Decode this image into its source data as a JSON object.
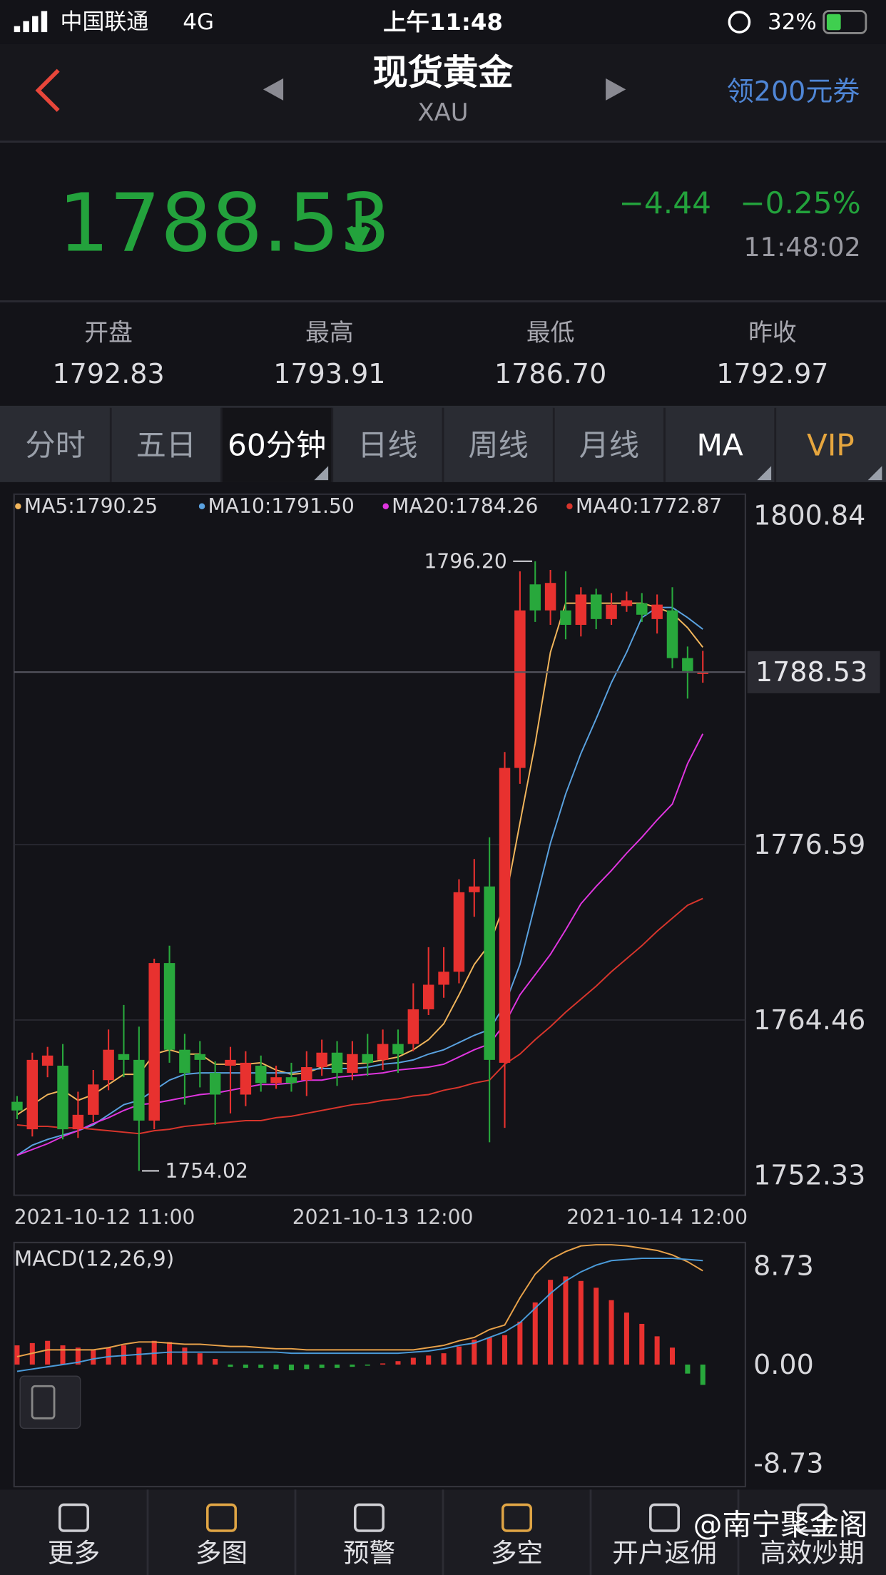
{
  "status_bar": {
    "carrier": "中国联通",
    "network": "4G",
    "time": "上午11:48",
    "battery": "32%"
  },
  "header": {
    "title": "现货黄金",
    "subtitle": "XAU",
    "coupon": "领200元券"
  },
  "quote": {
    "price": "1788.53",
    "change": "−4.44",
    "change_pct": "−0.25%",
    "time": "11:48:02"
  },
  "stats": [
    {
      "label": "开盘",
      "value": "1792.83"
    },
    {
      "label": "最高",
      "value": "1793.91"
    },
    {
      "label": "最低",
      "value": "1786.70"
    },
    {
      "label": "昨收",
      "value": "1792.97"
    }
  ],
  "tabs": [
    "分时",
    "五日",
    "60分钟",
    "日线",
    "周线",
    "月线",
    "MA",
    "VIP"
  ],
  "chart_data": [
    {
      "type": "candlestick",
      "categories": [
        "2021-10-12 11:00",
        null,
        null,
        null,
        null,
        null,
        null,
        null,
        null,
        null,
        null,
        null,
        null,
        null,
        null,
        null,
        null,
        null,
        null,
        null,
        null,
        null,
        null,
        null,
        "2021-10-13 12:00",
        null,
        null,
        null,
        null,
        null,
        null,
        null,
        null,
        null,
        null,
        null,
        null,
        null,
        null,
        null,
        null,
        null,
        "2021-10-14 12:00",
        null,
        null,
        null
      ],
      "open": [
        1758.8,
        1756.9,
        1761.3,
        1761.3,
        1756.9,
        1757.9,
        1760.3,
        1762.1,
        1761.7,
        1757.5,
        1768.4,
        1762.4,
        1762.1,
        1760.8,
        1761.3,
        1759.3,
        1761.3,
        1760.1,
        1760.5,
        1760.3,
        1761.2,
        1762.2,
        1760.8,
        1762.1,
        1761.7,
        1762.8,
        1762.8,
        1765.2,
        1766.9,
        1767.8,
        1773.3,
        1773.7,
        1761.5,
        1781.9,
        1794.6,
        1792.8,
        1792.8,
        1791.8,
        1793.9,
        1792.2,
        1793.1,
        1793.3,
        1792.2,
        1792.8,
        1789.5,
        1788.4
      ],
      "high": [
        1759.2,
        1762.2,
        1762.6,
        1762.8,
        1759.5,
        1761.0,
        1763.8,
        1765.5,
        1764.0,
        1768.7,
        1769.6,
        1763.5,
        1763.0,
        1761.6,
        1762.6,
        1762.3,
        1762.0,
        1761.3,
        1761.5,
        1762.3,
        1763.1,
        1763.0,
        1763.0,
        1763.5,
        1763.8,
        1763.8,
        1767.0,
        1769.5,
        1769.5,
        1774.2,
        1775.6,
        1777.1,
        1783.0,
        1795.5,
        1796.2,
        1795.6,
        1795.5,
        1794.4,
        1794.3,
        1794.0,
        1794.1,
        1794.0,
        1793.9,
        1794.4,
        1790.3,
        1790.0
      ],
      "low": [
        1757.6,
        1756.4,
        1760.5,
        1756.2,
        1756.3,
        1757.4,
        1759.6,
        1760.5,
        1754.02,
        1756.9,
        1761.5,
        1758.6,
        1759.8,
        1757.2,
        1758.0,
        1758.5,
        1759.5,
        1759.7,
        1759.5,
        1759.2,
        1760.6,
        1759.9,
        1760.3,
        1760.6,
        1761.0,
        1760.8,
        1762.3,
        1764.8,
        1766.0,
        1767.0,
        1771.6,
        1756.0,
        1757.0,
        1780.8,
        1792.0,
        1791.8,
        1790.8,
        1791.0,
        1791.5,
        1791.8,
        1792.7,
        1792.0,
        1791.2,
        1788.8,
        1786.7,
        1787.8
      ],
      "close": [
        1758.2,
        1761.7,
        1762.0,
        1756.9,
        1757.9,
        1760.0,
        1762.4,
        1761.7,
        1757.5,
        1768.4,
        1762.4,
        1760.8,
        1761.7,
        1759.3,
        1761.7,
        1761.5,
        1760.1,
        1760.5,
        1760.1,
        1761.2,
        1762.2,
        1760.8,
        1762.1,
        1761.5,
        1762.8,
        1762.1,
        1765.2,
        1766.9,
        1767.8,
        1773.3,
        1773.7,
        1761.7,
        1781.9,
        1792.8,
        1792.8,
        1794.7,
        1791.8,
        1793.9,
        1792.2,
        1793.2,
        1793.5,
        1792.5,
        1793.2,
        1789.5,
        1788.6,
        1788.53
      ],
      "up_color": "#e8312f",
      "down_color": "#28a83c",
      "series": [
        {
          "name": "MA5:1790.25",
          "color": "#f2b65c",
          "values": [
            1757.9,
            1758.6,
            1759.3,
            1759.6,
            1758.9,
            1759.3,
            1760.0,
            1760.7,
            1760.7,
            1762.1,
            1762.4,
            1762.1,
            1762.1,
            1761.4,
            1761.4,
            1761.4,
            1761.5,
            1761.0,
            1760.7,
            1760.8,
            1761.2,
            1761.5,
            1761.4,
            1761.5,
            1761.7,
            1761.9,
            1762.4,
            1763.1,
            1764.2,
            1766.2,
            1768.3,
            1769.7,
            1772.5,
            1778.1,
            1783.6,
            1789.9,
            1793.3,
            1793.3,
            1793.3,
            1793.3,
            1793.3,
            1793.3,
            1793.0,
            1792.6,
            1791.6,
            1790.25
          ]
        },
        {
          "name": "MA10:1791.50",
          "color": "#5aa2e0",
          "values": [
            1755.1,
            1755.8,
            1756.2,
            1756.5,
            1756.8,
            1757.2,
            1757.9,
            1758.6,
            1758.9,
            1759.6,
            1760.3,
            1760.7,
            1760.8,
            1760.8,
            1760.8,
            1760.8,
            1760.8,
            1760.8,
            1760.8,
            1761.0,
            1761.1,
            1761.1,
            1761.1,
            1761.2,
            1761.4,
            1761.5,
            1761.7,
            1762.1,
            1762.4,
            1762.9,
            1763.4,
            1763.8,
            1765.5,
            1768.3,
            1772.5,
            1776.7,
            1780.1,
            1782.9,
            1785.3,
            1787.8,
            1789.9,
            1792.3,
            1793.0,
            1793.0,
            1792.3,
            1791.5
          ]
        },
        {
          "name": "MA20:1784.26",
          "color": "#e035e0",
          "values": [
            1755.1,
            1755.5,
            1755.9,
            1756.4,
            1756.8,
            1757.3,
            1757.7,
            1758.2,
            1758.6,
            1758.7,
            1758.9,
            1759.1,
            1759.3,
            1759.4,
            1759.6,
            1759.8,
            1760.0,
            1760.0,
            1760.1,
            1760.3,
            1760.3,
            1760.5,
            1760.6,
            1760.7,
            1760.8,
            1761.0,
            1761.1,
            1761.2,
            1761.4,
            1761.9,
            1762.4,
            1762.8,
            1764.2,
            1766.2,
            1767.6,
            1769.0,
            1770.7,
            1772.5,
            1773.7,
            1774.8,
            1776.0,
            1777.1,
            1778.3,
            1779.4,
            1782.2,
            1784.26
          ]
        },
        {
          "name": "MA40:1772.87",
          "color": "#d8352c",
          "values": [
            1757.2,
            1757.1,
            1757.1,
            1757.0,
            1757.0,
            1756.9,
            1756.8,
            1756.7,
            1756.6,
            1756.8,
            1756.9,
            1757.1,
            1757.2,
            1757.3,
            1757.4,
            1757.5,
            1757.5,
            1757.7,
            1757.8,
            1758.0,
            1758.2,
            1758.4,
            1758.6,
            1758.7,
            1758.9,
            1759.0,
            1759.2,
            1759.3,
            1759.6,
            1759.8,
            1760.1,
            1760.3,
            1761.4,
            1762.1,
            1763.1,
            1764.0,
            1765.0,
            1765.9,
            1766.8,
            1767.8,
            1768.7,
            1769.6,
            1770.6,
            1771.5,
            1772.4,
            1772.87
          ]
        }
      ],
      "ylim": [
        1752.33,
        1800.84
      ],
      "yticks": [
        1800.84,
        1776.59,
        1764.46,
        1752.33
      ],
      "grid": true,
      "last_price": 1788.53,
      "annotations": [
        {
          "value": 1796.2,
          "label": "1796.20"
        },
        1754.02
      ]
    },
    {
      "type": "macd",
      "title": "MACD(12,26,9)",
      "values": [
        1.7,
        1.9,
        2.1,
        1.7,
        1.5,
        1.3,
        1.5,
        1.7,
        1.5,
        2.1,
        2.0,
        1.5,
        1.0,
        0.5,
        -0.2,
        -0.3,
        -0.3,
        -0.4,
        -0.5,
        -0.4,
        -0.3,
        -0.3,
        -0.2,
        -0.1,
        0.1,
        0.3,
        0.6,
        0.8,
        1.0,
        1.6,
        2.2,
        2.4,
        2.6,
        3.8,
        5.5,
        7.5,
        7.8,
        7.4,
        6.8,
        5.7,
        4.6,
        3.6,
        2.5,
        1.5,
        -0.8,
        -1.8
      ],
      "up_color": "#e8312f",
      "down_color": "#28a83c",
      "series": [
        {
          "color": "#e8a24a",
          "values": [
            0.7,
            1.0,
            1.3,
            1.3,
            1.3,
            1.3,
            1.5,
            1.8,
            2.0,
            2.0,
            1.9,
            1.8,
            1.8,
            1.7,
            1.6,
            1.6,
            1.5,
            1.4,
            1.4,
            1.3,
            1.3,
            1.3,
            1.3,
            1.3,
            1.3,
            1.3,
            1.3,
            1.5,
            1.7,
            2.1,
            2.4,
            3.1,
            3.5,
            5.9,
            8.0,
            9.3,
            10.0,
            10.5,
            10.6,
            10.6,
            10.5,
            10.3,
            10.1,
            9.7,
            9.1,
            8.3
          ]
        },
        {
          "color": "#4a9ad8",
          "values": [
            -0.6,
            -0.4,
            -0.2,
            0.0,
            0.2,
            0.5,
            0.7,
            0.8,
            0.9,
            1.0,
            1.1,
            1.1,
            1.1,
            1.1,
            1.1,
            1.1,
            1.1,
            1.1,
            1.0,
            1.0,
            1.0,
            1.0,
            1.0,
            1.0,
            1.0,
            1.0,
            1.1,
            1.2,
            1.4,
            1.7,
            1.9,
            2.4,
            2.9,
            3.7,
            5.0,
            6.3,
            7.4,
            8.2,
            8.8,
            9.2,
            9.3,
            9.4,
            9.4,
            9.4,
            9.3,
            9.2
          ]
        }
      ],
      "ylim": [
        -10.8,
        10.8
      ],
      "yticks": [
        8.73,
        {
          "value": 0,
          "label": "0.00"
        },
        -8.73
      ]
    }
  ],
  "nav": [
    "更多",
    "多图",
    "预警",
    "多空",
    "开户返佣",
    "高效炒期"
  ],
  "watermark": "@南宁聚金阁"
}
